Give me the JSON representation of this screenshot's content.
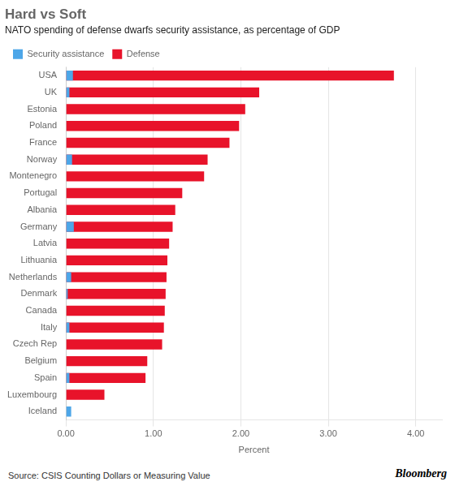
{
  "chart_data": {
    "type": "bar",
    "orientation": "horizontal",
    "title": "Hard vs Soft",
    "subtitle": "NATO spending of defense dwarfs security assistance, as percentage of GDP",
    "source": "Source: CSIS Counting Dollars or Measuring Value",
    "annotations": [
      "Bloomberg"
    ],
    "xlabel": "Percent",
    "categories": [
      "USA",
      "UK",
      "Estonia",
      "Poland",
      "France",
      "Norway",
      "Montenegro",
      "Portugal",
      "Albania",
      "Germany",
      "Latvia",
      "Lithuania",
      "Netherlands",
      "Denmark",
      "Canada",
      "Italy",
      "Czech Rep",
      "Belgium",
      "Spain",
      "Luxembourg",
      "Iceland"
    ],
    "series": [
      {
        "name": "Security assistance",
        "color": "#4da6e8",
        "values": [
          0.08,
          0.04,
          0.0,
          0.0,
          0.0,
          0.07,
          0.0,
          0.0,
          0.0,
          0.09,
          0.0,
          0.0,
          0.06,
          0.02,
          0.0,
          0.04,
          0.0,
          0.0,
          0.04,
          0.0,
          0.06
        ]
      },
      {
        "name": "Defense",
        "color": "#e8132a",
        "values": [
          3.75,
          2.21,
          2.05,
          1.98,
          1.87,
          1.62,
          1.58,
          1.33,
          1.25,
          1.22,
          1.18,
          1.16,
          1.15,
          1.14,
          1.13,
          1.12,
          1.1,
          0.93,
          0.91,
          0.44,
          0.0
        ]
      }
    ],
    "xlim": [
      0,
      4.3
    ],
    "xticks": [
      {
        "value": 0.0,
        "label": "0.00"
      },
      {
        "value": 1.0,
        "label": "1.00"
      },
      {
        "value": 2.0,
        "label": "2.00"
      },
      {
        "value": 3.0,
        "label": "3.00"
      },
      {
        "value": 4.0,
        "label": "4.00"
      }
    ],
    "grid": true,
    "legend": "upper left"
  }
}
